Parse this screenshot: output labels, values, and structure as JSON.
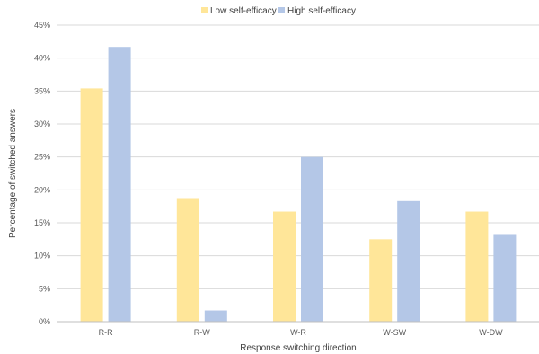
{
  "chart_data": {
    "type": "bar",
    "title": "",
    "xlabel": "Response switching direction",
    "ylabel": "Percentage of switched answers",
    "categories": [
      "R-R",
      "R-W",
      "W-R",
      "W-SW",
      "W-DW"
    ],
    "series": [
      {
        "name": "Low self-efficacy",
        "color": "#ffe699",
        "values": [
          35.4,
          18.75,
          16.7,
          12.5,
          16.7
        ]
      },
      {
        "name": "High self-efficacy",
        "color": "#b4c7e7",
        "values": [
          41.7,
          1.7,
          25.0,
          18.3,
          13.3
        ]
      }
    ],
    "ylim": [
      0,
      45
    ],
    "yticks": [
      "0%",
      "5%",
      "10%",
      "15%",
      "20%",
      "25%",
      "30%",
      "35%",
      "40%",
      "45%"
    ],
    "grid": true,
    "legend": "top-center"
  }
}
